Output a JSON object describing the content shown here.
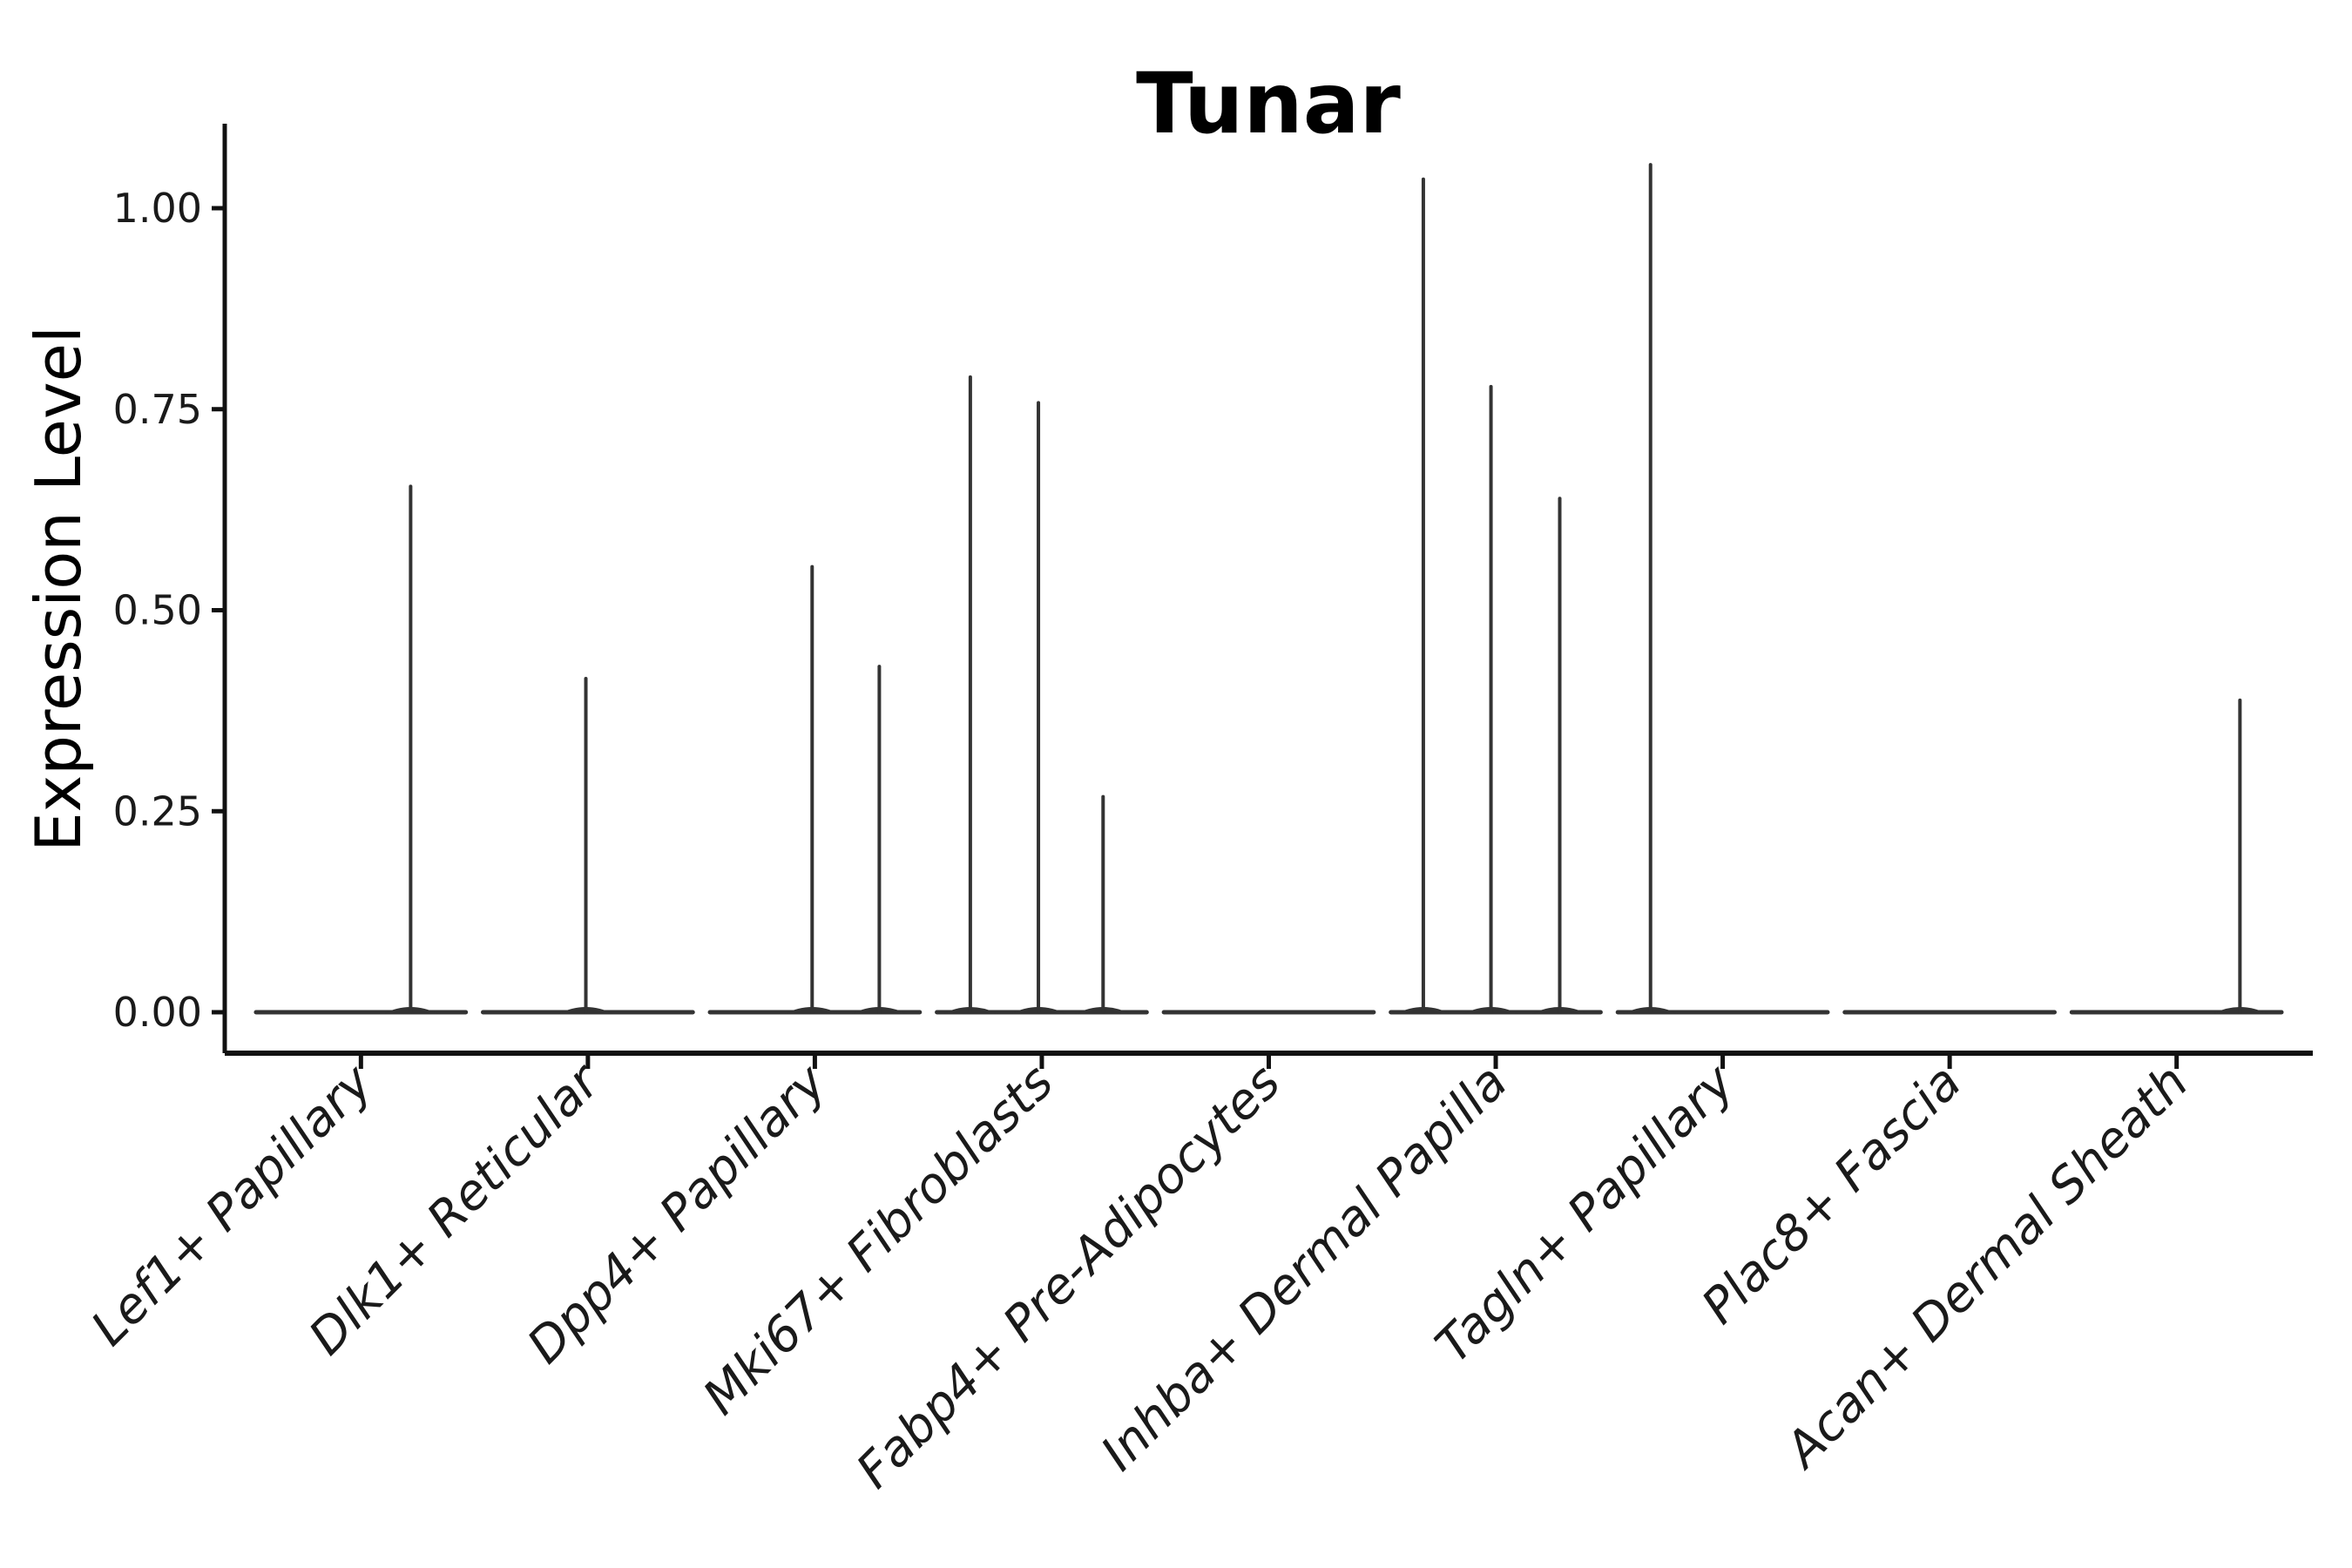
{
  "figure": {
    "title": "Tunar"
  },
  "axes": {
    "ylabel": "Expression Level",
    "xlabel": "",
    "ytick_labels": [
      "0.00",
      "0.25",
      "0.50",
      "0.75",
      "1.00"
    ]
  },
  "chart_data": {
    "type": "violin",
    "title": "Tunar",
    "xlabel": "",
    "ylabel": "Expression Level",
    "categories": [
      "Lef1+ Papillary",
      "Dlk1+ Reticular",
      "Dpp4+ Papillary",
      "Mki67+ Fibroblasts",
      "Fabp4+ Pre-Adipocytes",
      "Inhba+ Dermal Papilla",
      "Tagln+ Papillary",
      "Plac8+ Fascia",
      "Acan+ Dermal Sheath"
    ],
    "yticks": [
      0,
      0.25,
      0.5,
      0.75,
      1.0
    ],
    "ytick_labels": [
      "0.00",
      "0.25",
      "0.50",
      "0.75",
      "1.00"
    ],
    "ylim": [
      -0.051,
      1.105
    ],
    "grid": false,
    "legend": "none",
    "baseline_value": 0,
    "baseline_halfwidth_frac": 0.462,
    "violins": [
      {
        "category": "Lef1+ Papillary",
        "spikes": [
          {
            "offset_frac": 0.219,
            "value": 0.654
          }
        ]
      },
      {
        "category": "Dlk1+ Reticular",
        "spikes": [
          {
            "offset_frac": -0.009,
            "value": 0.415
          }
        ]
      },
      {
        "category": "Dpp4+ Papillary",
        "spikes": [
          {
            "offset_frac": -0.012,
            "value": 0.554
          },
          {
            "offset_frac": 0.284,
            "value": 0.43
          }
        ]
      },
      {
        "category": "Mki67+ Fibroblasts",
        "spikes": [
          {
            "offset_frac": -0.315,
            "value": 0.79
          },
          {
            "offset_frac": -0.015,
            "value": 0.758
          },
          {
            "offset_frac": 0.27,
            "value": 0.268
          }
        ]
      },
      {
        "category": "Fabp4+ Pre-Adipocytes",
        "spikes": []
      },
      {
        "category": "Inhba+ Dermal Papilla",
        "spikes": [
          {
            "offset_frac": -0.319,
            "value": 1.036
          },
          {
            "offset_frac": -0.021,
            "value": 0.778
          },
          {
            "offset_frac": 0.282,
            "value": 0.639
          }
        ]
      },
      {
        "category": "Tagln+ Papillary",
        "spikes": [
          {
            "offset_frac": -0.318,
            "value": 1.054
          }
        ]
      },
      {
        "category": "Plac8+ Fascia",
        "spikes": []
      },
      {
        "category": "Acan+ Dermal Sheath",
        "spikes": [
          {
            "offset_frac": 0.279,
            "value": 0.388
          }
        ]
      }
    ],
    "style": {
      "violin_color": "#333333",
      "axis_color": "#111111",
      "text_color": "#000000",
      "background": "#ffffff"
    }
  }
}
